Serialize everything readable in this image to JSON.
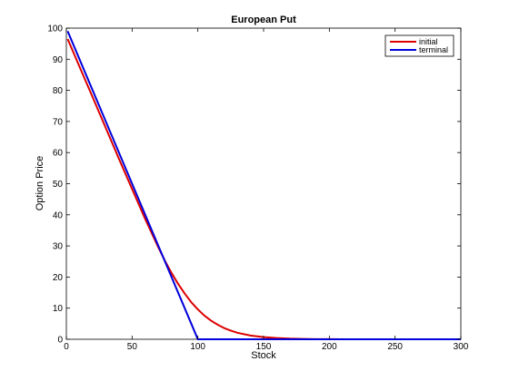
{
  "chart_data": {
    "type": "line",
    "title": "European Put",
    "xlabel": "Stock",
    "ylabel": "Option Price",
    "xlim": [
      0,
      300
    ],
    "ylim": [
      0,
      100
    ],
    "x_ticks": [
      "0",
      "50",
      "100",
      "150",
      "200",
      "250",
      "300"
    ],
    "y_ticks": [
      "0",
      "10",
      "20",
      "30",
      "40",
      "50",
      "60",
      "70",
      "80",
      "90",
      "100"
    ],
    "grid": false,
    "legend_position": "top-right",
    "series": [
      {
        "name": "initial",
        "color": "#dd0000",
        "x": [
          1,
          10,
          20,
          30,
          40,
          50,
          60,
          70,
          75,
          80,
          85,
          90,
          95,
          100,
          105,
          110,
          115,
          120,
          125,
          130,
          140,
          150,
          160,
          170,
          180,
          190,
          200,
          220,
          250,
          300
        ],
        "y": [
          96.5,
          87.6,
          77.8,
          67.9,
          58.0,
          48.3,
          38.6,
          29.5,
          25.2,
          21.3,
          17.8,
          14.7,
          11.9,
          9.6,
          7.6,
          6.0,
          4.7,
          3.6,
          2.8,
          2.1,
          1.2,
          0.7,
          0.4,
          0.2,
          0.1,
          0.05,
          0.02,
          0.0,
          0.0,
          0.0
        ]
      },
      {
        "name": "terminal",
        "color": "#0000dd",
        "x": [
          1,
          99,
          100,
          300
        ],
        "y": [
          99,
          1,
          0,
          0
        ]
      }
    ]
  }
}
